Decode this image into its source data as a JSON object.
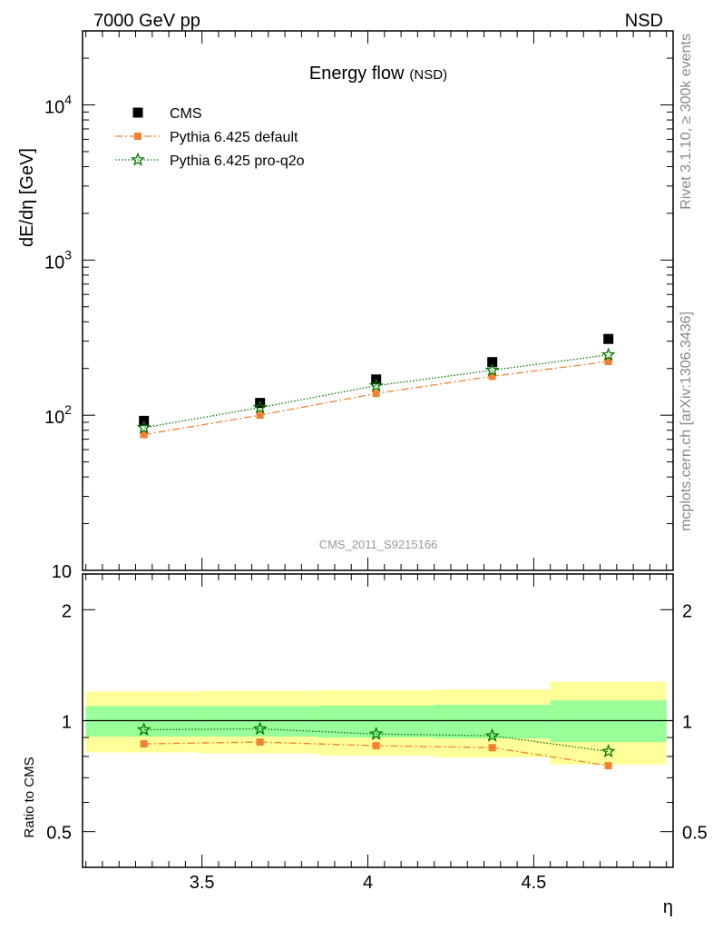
{
  "header": {
    "left": "7000 GeV pp",
    "right": "NSD"
  },
  "side": {
    "rivet": "Rivet 3.1.10, ≥ 300k events",
    "mcplots": "mcplots.cern.ch [arXiv:1306.3436]"
  },
  "chart_data": [
    {
      "type": "scatter",
      "title": "Energy flow",
      "title_sub": "(NSD)",
      "watermark": "CMS_2011_S9215166",
      "ylabel": "dE/dη [GeV]",
      "yscale": "log",
      "ylim": [
        10,
        30000
      ],
      "xlim": [
        3.14,
        4.92
      ],
      "y_tick_labels": [
        {
          "value": 10,
          "base": "10",
          "exp": ""
        },
        {
          "value": 100,
          "base": "10",
          "exp": "2"
        },
        {
          "value": 1000,
          "base": "10",
          "exp": "3"
        },
        {
          "value": 10000,
          "base": "10",
          "exp": "4"
        }
      ],
      "x": [
        3.325,
        3.675,
        4.025,
        4.375,
        4.725
      ],
      "series": [
        {
          "name": "CMS",
          "values": [
            92,
            120,
            170,
            220,
            310
          ],
          "color": "#000000",
          "marker": "square"
        },
        {
          "name": "Pythia 6.425 default",
          "values": [
            75,
            100,
            138,
            178,
            222
          ],
          "color": "#f4812f",
          "marker": "square-small",
          "dash": "dashdot"
        },
        {
          "name": "Pythia 6.425 pro-q2o",
          "values": [
            83,
            112,
            155,
            195,
            245
          ],
          "color": "#007700",
          "marker": "star",
          "dash": "dot"
        }
      ],
      "legend_position": "top-left"
    },
    {
      "type": "line",
      "ylabel": "Ratio to CMS",
      "xlabel": "η",
      "yscale": "log",
      "ylim": [
        0.4,
        2.5
      ],
      "xlim": [
        3.14,
        4.92
      ],
      "y_tick_labels": [
        {
          "value": 0.5,
          "label": "0.5"
        },
        {
          "value": 1,
          "label": "1"
        },
        {
          "value": 2,
          "label": "2"
        }
      ],
      "x_tick_labels": [
        {
          "value": 3.5,
          "label": "3.5"
        },
        {
          "value": 4,
          "label": "4"
        },
        {
          "value": 4.5,
          "label": "4.5"
        }
      ],
      "bins": [
        {
          "lo": 3.15,
          "hi": 3.5,
          "band1": [
            0.905,
            1.095
          ],
          "band2": [
            0.82,
            1.2
          ]
        },
        {
          "lo": 3.5,
          "hi": 3.85,
          "band1": [
            0.905,
            1.095
          ],
          "band2": [
            0.815,
            1.205
          ]
        },
        {
          "lo": 3.85,
          "hi": 4.2,
          "band1": [
            0.9,
            1.1
          ],
          "band2": [
            0.805,
            1.21
          ]
        },
        {
          "lo": 4.2,
          "hi": 4.55,
          "band1": [
            0.895,
            1.105
          ],
          "band2": [
            0.795,
            1.215
          ]
        },
        {
          "lo": 4.55,
          "hi": 4.9,
          "band1": [
            0.875,
            1.135
          ],
          "band2": [
            0.76,
            1.275
          ]
        }
      ],
      "band_colors": {
        "inner": "#99ff99",
        "outer": "#ffff99"
      },
      "x": [
        3.325,
        3.675,
        4.025,
        4.375,
        4.725
      ],
      "series": [
        {
          "name": "Pythia 6.425 default",
          "values": [
            0.865,
            0.875,
            0.855,
            0.845,
            0.755
          ],
          "color": "#f4812f",
          "marker": "square-small",
          "dash": "dashdot"
        },
        {
          "name": "Pythia 6.425 pro-q2o",
          "values": [
            0.945,
            0.95,
            0.92,
            0.91,
            0.825
          ],
          "color": "#007700",
          "marker": "star",
          "dash": "dot"
        }
      ]
    }
  ]
}
